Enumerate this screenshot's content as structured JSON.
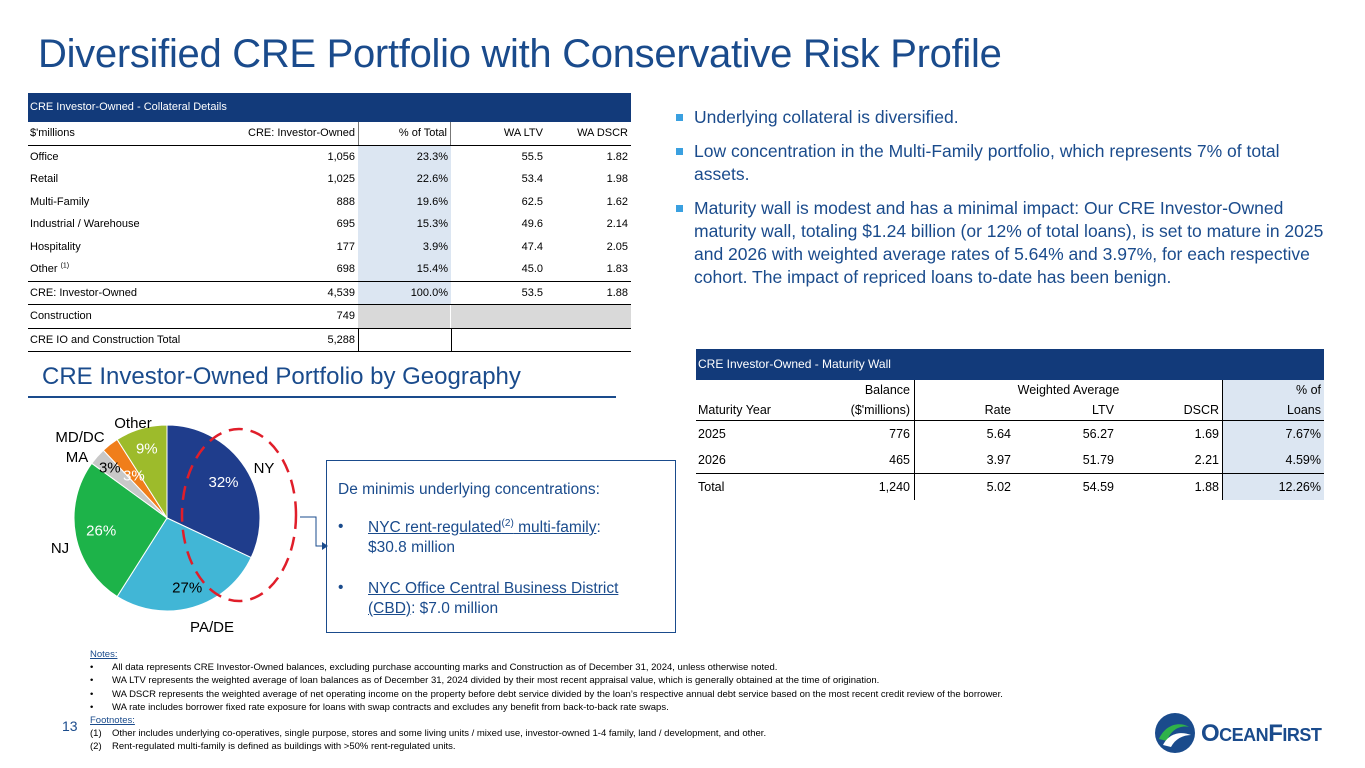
{
  "title": "Diversified CRE Portfolio with Conservative Risk Profile",
  "collateral_table": {
    "header": "CRE Investor-Owned - Collateral Details",
    "columns": [
      "$'millions",
      "CRE: Investor-Owned",
      "% of Total",
      "WA LTV",
      "WA DSCR"
    ],
    "rows": [
      {
        "label": "Office",
        "amount": "1,056",
        "pct": "23.3%",
        "ltv": "55.5",
        "dscr": "1.82"
      },
      {
        "label": "Retail",
        "amount": "1,025",
        "pct": "22.6%",
        "ltv": "53.4",
        "dscr": "1.98"
      },
      {
        "label": "Multi-Family",
        "amount": "888",
        "pct": "19.6%",
        "ltv": "62.5",
        "dscr": "1.62"
      },
      {
        "label": "Industrial / Warehouse",
        "amount": "695",
        "pct": "15.3%",
        "ltv": "49.6",
        "dscr": "2.14"
      },
      {
        "label": "Hospitality",
        "amount": "177",
        "pct": "3.9%",
        "ltv": "47.4",
        "dscr": "2.05"
      },
      {
        "label": "Other",
        "sup": "(1)",
        "amount": "698",
        "pct": "15.4%",
        "ltv": "45.0",
        "dscr": "1.83"
      }
    ],
    "total": {
      "label": "CRE: Investor-Owned",
      "amount": "4,539",
      "pct": "100.0%",
      "ltv": "53.5",
      "dscr": "1.88"
    },
    "construction": {
      "label": "Construction",
      "amount": "749"
    },
    "cre_total": {
      "label": "CRE IO and Construction Total",
      "amount": "5,288"
    }
  },
  "bullets": [
    "Underlying collateral is diversified.",
    "Low concentration in the Multi-Family portfolio, which represents 7% of total assets.",
    "Maturity wall is modest and has a minimal impact: Our CRE Investor-Owned maturity wall, totaling $1.24 billion (or 12% of total loans), is set to mature in 2025 and 2026 with weighted average rates of 5.64% and 3.97%, for each respective cohort. The impact of repriced loans to-date has been benign."
  ],
  "geography": {
    "title": "CRE Investor-Owned Portfolio by Geography"
  },
  "chart_data": {
    "type": "pie",
    "title": "CRE Investor-Owned Portfolio by Geography",
    "categories": [
      "NY",
      "PA/DE",
      "NJ",
      "MD/DC",
      "MA",
      "Other"
    ],
    "values": [
      32,
      27,
      26,
      3,
      3,
      9
    ],
    "labels": [
      "32%",
      "27%",
      "26%",
      "3%",
      "3%",
      "9%"
    ],
    "category_labels": [
      "NY",
      "PA/DE",
      "NJ",
      "MD/DC",
      "MA",
      "Other"
    ],
    "colors": [
      "#1f3d8c",
      "#41b6d6",
      "#1db349",
      "#c8c8c8",
      "#f07e1a",
      "#9dbb2b"
    ],
    "label_colors": [
      "#ffffff",
      "#000000",
      "#ffffff",
      "#000000",
      "#ffffff",
      "#ffffff"
    ]
  },
  "callout": {
    "heading": "De minimis underlying concentrations:",
    "item1_link_a": "NYC rent-regulated",
    "item1_sup": "(2)",
    "item1_link_b": " multi-family",
    "item1_rest": ":",
    "item1_line2": "$30.8 million",
    "item2_link": "NYC Office Central Business District (CBD)",
    "item2_rest": ": $7.0 million",
    "bullet": "•"
  },
  "maturity_table": {
    "header": "CRE Investor-Owned - Maturity Wall",
    "h1": {
      "balance": "Balance",
      "wa": "Weighted Average",
      "pct": "% of"
    },
    "h2": {
      "year": "Maturity Year",
      "balance": "($'millions)",
      "rate": "Rate",
      "ltv": "LTV",
      "dscr": "DSCR",
      "pct": "Loans"
    },
    "rows": [
      {
        "year": "2025",
        "balance": "776",
        "rate": "5.64",
        "ltv": "56.27",
        "dscr": "1.69",
        "pct": "7.67%"
      },
      {
        "year": "2026",
        "balance": "465",
        "rate": "3.97",
        "ltv": "51.79",
        "dscr": "2.21",
        "pct": "4.59%"
      }
    ],
    "total": {
      "year": "Total",
      "balance": "1,240",
      "rate": "5.02",
      "ltv": "54.59",
      "dscr": "1.88",
      "pct": "12.26%"
    }
  },
  "notes": {
    "label": "Notes:",
    "items": [
      "All data represents CRE Investor-Owned balances, excluding purchase accounting marks and Construction as of December 31, 2024, unless otherwise noted.",
      "WA LTV represents the weighted average of loan balances as of December 31, 2024 divided by their most recent appraisal value, which is generally obtained at the time of origination.",
      "WA DSCR represents the weighted average of net operating income on the property before debt service divided by the loan’s respective annual debt service based on the most recent credit review of the borrower.",
      "WA rate includes borrower fixed rate exposure for loans with swap contracts and excludes any benefit from back-to-back rate swaps."
    ],
    "bullet": "•",
    "footnotes_label": "Footnotes:",
    "footnotes": [
      {
        "mark": "(1)",
        "text": "Other includes underlying co-operatives, single purpose, stores and some living units / mixed use, investor-owned 1-4 family, land / development, and other."
      },
      {
        "mark": "(2)",
        "text": "Rent-regulated multi-family is defined as buildings with >50% rent-regulated units."
      }
    ]
  },
  "page_number": "13",
  "logo": {
    "text_a": "O",
    "text_b": "CEAN",
    "text_c": "F",
    "text_d": "IRST",
    "icon": "oceanfirst-wave-icon"
  }
}
